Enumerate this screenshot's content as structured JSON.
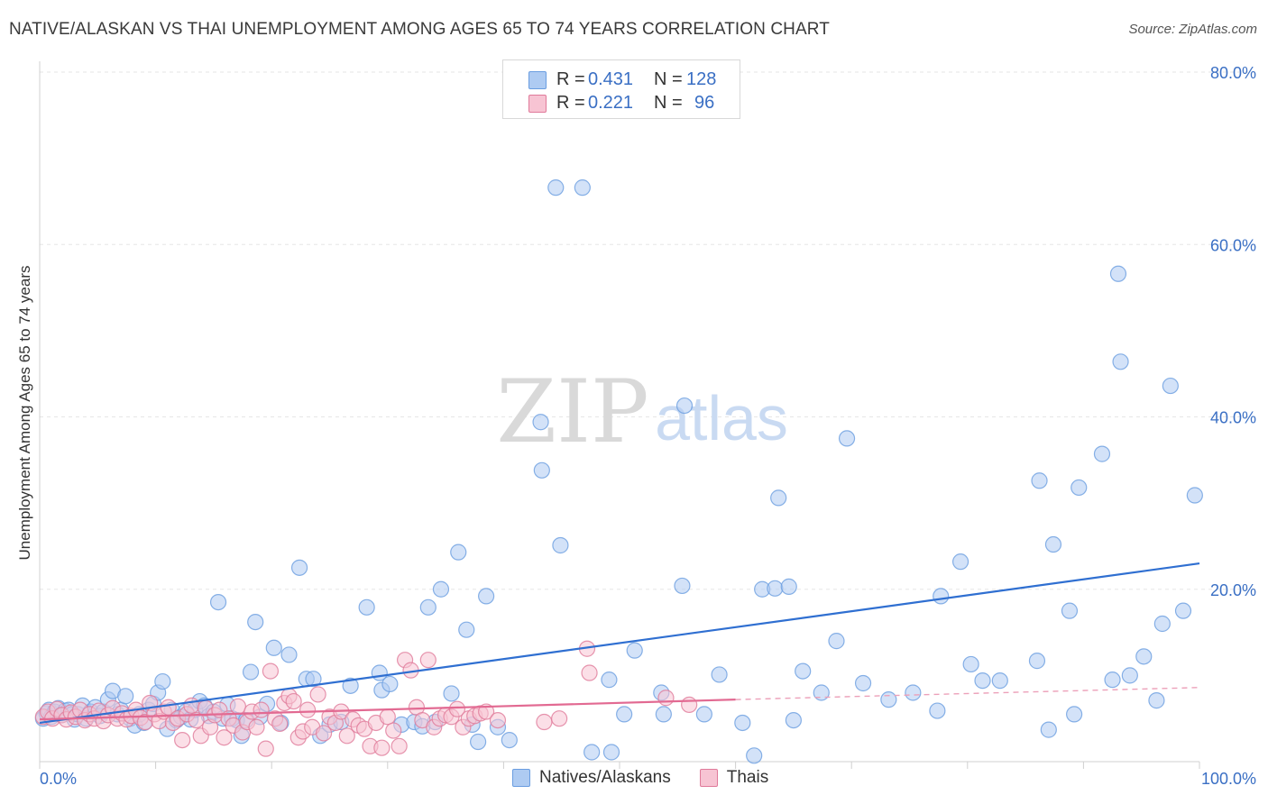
{
  "header": {
    "title": "NATIVE/ALASKAN VS THAI UNEMPLOYMENT AMONG AGES 65 TO 74 YEARS CORRELATION CHART",
    "source": "Source: ZipAtlas.com"
  },
  "legend": {
    "rows": [
      {
        "r_label": "R =",
        "r_value": "0.431",
        "n_label": "N =",
        "n_value": "128",
        "color": "#9ebfef"
      },
      {
        "r_label": "R =",
        "r_value": "0.221",
        "n_label": "N =",
        "n_value": "96",
        "color": "#f5b8c9"
      }
    ]
  },
  "bottom_legend": {
    "items": [
      {
        "label": "Natives/Alaskans",
        "color": "#9ebfef"
      },
      {
        "label": "Thais",
        "color": "#f5b8c9"
      }
    ]
  },
  "watermark": {
    "zip": "ZIP",
    "atlas": "atlas"
  },
  "chart_data": {
    "type": "scatter",
    "ylabel": "Unemployment Among Ages 65 to 74 years",
    "xlim": [
      0,
      100
    ],
    "ylim": [
      0,
      80
    ],
    "x_tick_labels": [
      "0.0%",
      "100.0%"
    ],
    "y_tick_labels": [
      "20.0%",
      "40.0%",
      "60.0%",
      "80.0%"
    ],
    "y_ticks": [
      20,
      40,
      60,
      80
    ],
    "grid": true,
    "series": [
      {
        "name": "Natives/Alaskans",
        "color": "#6a9de0",
        "fill": "#aecbf2",
        "trend": {
          "x": [
            0,
            100
          ],
          "y": [
            4.5,
            23.0
          ]
        },
        "points": [
          [
            0.3,
            5.0
          ],
          [
            0.6,
            5.6
          ],
          [
            0.8,
            6.0
          ],
          [
            1.0,
            5.2
          ],
          [
            1.3,
            5.8
          ],
          [
            1.6,
            6.2
          ],
          [
            1.9,
            5.4
          ],
          [
            2.2,
            5.9
          ],
          [
            2.5,
            6.0
          ],
          [
            2.8,
            5.5
          ],
          [
            3.0,
            4.9
          ],
          [
            3.3,
            5.5
          ],
          [
            3.7,
            6.5
          ],
          [
            4.0,
            5.0
          ],
          [
            4.4,
            5.8
          ],
          [
            4.8,
            6.3
          ],
          [
            5.2,
            5.3
          ],
          [
            5.5,
            5.8
          ],
          [
            5.9,
            7.2
          ],
          [
            6.3,
            8.2
          ],
          [
            6.7,
            5.5
          ],
          [
            7.0,
            6.0
          ],
          [
            7.4,
            7.6
          ],
          [
            7.8,
            5.0
          ],
          [
            8.2,
            4.2
          ],
          [
            8.6,
            5.5
          ],
          [
            9.0,
            4.5
          ],
          [
            9.4,
            6.0
          ],
          [
            9.8,
            6.7
          ],
          [
            10.2,
            8.0
          ],
          [
            10.6,
            9.3
          ],
          [
            11.0,
            3.8
          ],
          [
            11.4,
            6.0
          ],
          [
            11.8,
            4.8
          ],
          [
            12.2,
            5.2
          ],
          [
            12.6,
            5.8
          ],
          [
            13.0,
            4.9
          ],
          [
            13.4,
            6.0
          ],
          [
            13.8,
            7.0
          ],
          [
            14.2,
            6.5
          ],
          [
            14.6,
            5.3
          ],
          [
            15.0,
            5.8
          ],
          [
            15.4,
            18.5
          ],
          [
            15.8,
            5.0
          ],
          [
            16.2,
            6.6
          ],
          [
            16.6,
            5.0
          ],
          [
            17.0,
            4.8
          ],
          [
            17.4,
            3.0
          ],
          [
            17.8,
            4.8
          ],
          [
            18.2,
            10.4
          ],
          [
            18.6,
            16.2
          ],
          [
            19.0,
            5.2
          ],
          [
            19.6,
            6.7
          ],
          [
            20.2,
            13.2
          ],
          [
            20.8,
            4.5
          ],
          [
            21.5,
            12.4
          ],
          [
            22.4,
            22.5
          ],
          [
            23.0,
            9.6
          ],
          [
            23.6,
            9.6
          ],
          [
            24.2,
            3.0
          ],
          [
            25.0,
            4.3
          ],
          [
            26.0,
            4.6
          ],
          [
            26.8,
            8.8
          ],
          [
            28.2,
            17.9
          ],
          [
            29.3,
            10.3
          ],
          [
            29.5,
            8.3
          ],
          [
            30.2,
            9.0
          ],
          [
            31.2,
            4.3
          ],
          [
            32.3,
            4.6
          ],
          [
            33.0,
            4.1
          ],
          [
            33.5,
            17.9
          ],
          [
            34.1,
            4.6
          ],
          [
            34.6,
            20.0
          ],
          [
            35.5,
            7.9
          ],
          [
            36.1,
            24.3
          ],
          [
            36.8,
            15.3
          ],
          [
            37.3,
            4.3
          ],
          [
            37.8,
            2.3
          ],
          [
            38.5,
            19.2
          ],
          [
            39.5,
            4.0
          ],
          [
            40.5,
            2.5
          ],
          [
            43.2,
            39.4
          ],
          [
            43.3,
            33.8
          ],
          [
            44.9,
            25.1
          ],
          [
            44.5,
            66.6
          ],
          [
            46.8,
            66.6
          ],
          [
            47.6,
            1.1
          ],
          [
            49.1,
            9.5
          ],
          [
            49.3,
            1.1
          ],
          [
            50.4,
            5.5
          ],
          [
            51.3,
            12.9
          ],
          [
            53.6,
            8.0
          ],
          [
            53.8,
            5.5
          ],
          [
            55.4,
            20.4
          ],
          [
            55.6,
            41.3
          ],
          [
            57.3,
            5.5
          ],
          [
            58.6,
            10.1
          ],
          [
            60.6,
            4.5
          ],
          [
            61.6,
            0.7
          ],
          [
            62.3,
            20.0
          ],
          [
            63.4,
            20.1
          ],
          [
            63.7,
            30.6
          ],
          [
            64.6,
            20.3
          ],
          [
            65.0,
            4.8
          ],
          [
            65.8,
            10.5
          ],
          [
            67.4,
            8.0
          ],
          [
            68.7,
            14.0
          ],
          [
            69.6,
            37.5
          ],
          [
            71.0,
            9.1
          ],
          [
            73.2,
            7.2
          ],
          [
            75.3,
            8.0
          ],
          [
            77.4,
            5.9
          ],
          [
            77.7,
            19.2
          ],
          [
            79.4,
            23.2
          ],
          [
            80.3,
            11.3
          ],
          [
            81.3,
            9.4
          ],
          [
            82.8,
            9.4
          ],
          [
            86.0,
            11.7
          ],
          [
            86.2,
            32.6
          ],
          [
            87.4,
            25.2
          ],
          [
            87.0,
            3.7
          ],
          [
            88.8,
            17.5
          ],
          [
            89.2,
            5.5
          ],
          [
            89.6,
            31.8
          ],
          [
            91.6,
            35.7
          ],
          [
            92.5,
            9.5
          ],
          [
            93.0,
            56.6
          ],
          [
            93.2,
            46.4
          ],
          [
            94.0,
            10.0
          ],
          [
            95.2,
            12.2
          ],
          [
            96.3,
            7.1
          ],
          [
            96.8,
            16.0
          ],
          [
            97.5,
            43.6
          ],
          [
            98.6,
            17.5
          ],
          [
            99.6,
            30.9
          ]
        ]
      },
      {
        "name": "Thais",
        "color": "#e07a9a",
        "fill": "#f7c4d3",
        "trend": {
          "x": [
            0,
            60
          ],
          "y": [
            4.9,
            7.2
          ]
        },
        "trend_dashed": {
          "x": [
            60,
            100
          ],
          "y": [
            7.2,
            8.6
          ]
        },
        "points": [
          [
            0.3,
            5.2
          ],
          [
            0.7,
            5.8
          ],
          [
            1.1,
            5.0
          ],
          [
            1.5,
            6.1
          ],
          [
            1.9,
            5.4
          ],
          [
            2.3,
            4.9
          ],
          [
            2.7,
            5.7
          ],
          [
            3.1,
            5.2
          ],
          [
            3.5,
            6.0
          ],
          [
            3.9,
            4.8
          ],
          [
            4.3,
            5.5
          ],
          [
            4.7,
            5.0
          ],
          [
            5.1,
            5.9
          ],
          [
            5.5,
            4.7
          ],
          [
            5.9,
            5.4
          ],
          [
            6.3,
            6.2
          ],
          [
            6.7,
            5.0
          ],
          [
            7.1,
            5.6
          ],
          [
            7.5,
            4.9
          ],
          [
            7.9,
            5.3
          ],
          [
            8.3,
            6.0
          ],
          [
            8.7,
            5.1
          ],
          [
            9.1,
            4.6
          ],
          [
            9.5,
            6.8
          ],
          [
            9.9,
            5.5
          ],
          [
            10.3,
            4.7
          ],
          [
            10.7,
            5.8
          ],
          [
            11.1,
            6.3
          ],
          [
            11.5,
            4.5
          ],
          [
            11.9,
            5.0
          ],
          [
            12.3,
            2.5
          ],
          [
            12.7,
            5.5
          ],
          [
            13.1,
            6.5
          ],
          [
            13.5,
            4.8
          ],
          [
            13.9,
            3.0
          ],
          [
            14.3,
            6.2
          ],
          [
            14.7,
            4.0
          ],
          [
            15.1,
            5.4
          ],
          [
            15.5,
            6.0
          ],
          [
            15.9,
            2.8
          ],
          [
            16.3,
            5.0
          ],
          [
            16.7,
            4.2
          ],
          [
            17.1,
            6.4
          ],
          [
            17.5,
            3.4
          ],
          [
            17.9,
            4.6
          ],
          [
            18.3,
            5.8
          ],
          [
            18.7,
            4.0
          ],
          [
            19.1,
            6.0
          ],
          [
            19.5,
            1.5
          ],
          [
            19.9,
            10.5
          ],
          [
            20.3,
            5.0
          ],
          [
            20.7,
            4.4
          ],
          [
            21.1,
            6.8
          ],
          [
            21.5,
            7.6
          ],
          [
            21.9,
            7.0
          ],
          [
            22.3,
            2.8
          ],
          [
            22.7,
            3.5
          ],
          [
            23.1,
            6.0
          ],
          [
            23.5,
            4.0
          ],
          [
            24.0,
            7.8
          ],
          [
            24.5,
            3.3
          ],
          [
            25.0,
            5.2
          ],
          [
            25.5,
            4.5
          ],
          [
            26.0,
            5.8
          ],
          [
            26.5,
            3.0
          ],
          [
            27.0,
            4.9
          ],
          [
            27.5,
            4.2
          ],
          [
            28.0,
            3.8
          ],
          [
            28.5,
            1.8
          ],
          [
            29.0,
            4.5
          ],
          [
            29.5,
            1.6
          ],
          [
            30.0,
            5.2
          ],
          [
            30.5,
            3.6
          ],
          [
            31.0,
            1.8
          ],
          [
            31.5,
            11.8
          ],
          [
            32.0,
            10.6
          ],
          [
            32.5,
            6.3
          ],
          [
            33.0,
            4.8
          ],
          [
            33.5,
            11.8
          ],
          [
            34.0,
            4.0
          ],
          [
            34.5,
            5.0
          ],
          [
            35.0,
            5.4
          ],
          [
            35.5,
            5.2
          ],
          [
            36.0,
            6.1
          ],
          [
            36.5,
            4.0
          ],
          [
            37.0,
            5.0
          ],
          [
            37.5,
            5.3
          ],
          [
            38.0,
            5.6
          ],
          [
            38.5,
            5.8
          ],
          [
            39.5,
            4.8
          ],
          [
            43.5,
            4.6
          ],
          [
            44.8,
            5.0
          ],
          [
            47.2,
            13.1
          ],
          [
            47.4,
            10.3
          ],
          [
            54.0,
            7.4
          ],
          [
            56.0,
            6.6
          ]
        ]
      }
    ]
  }
}
